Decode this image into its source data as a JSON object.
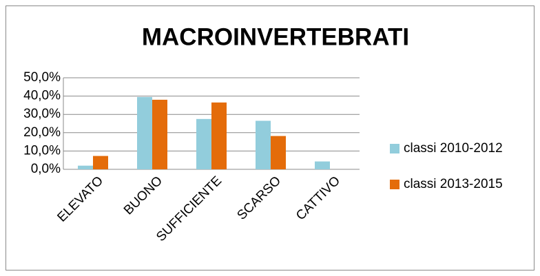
{
  "chart_data": {
    "type": "bar",
    "title": "MACROINVERTEBRATI",
    "categories": [
      "ELEVATO",
      "BUONO",
      "SUFFICIENTE",
      "SCARSO",
      "CATTIVO"
    ],
    "series": [
      {
        "name": "classi 2010-2012",
        "color": "#92cddc",
        "values": [
          2.0,
          39.5,
          27.5,
          26.5,
          4.3
        ]
      },
      {
        "name": "classi 2013-2015",
        "color": "#e46c0a",
        "values": [
          7.3,
          38.0,
          36.5,
          18.2,
          0
        ]
      }
    ],
    "ylim": [
      0,
      50
    ],
    "yticks": [
      {
        "value": 0,
        "label": "0,0%"
      },
      {
        "value": 10,
        "label": "10,0%"
      },
      {
        "value": 20,
        "label": "20,0%"
      },
      {
        "value": 30,
        "label": "30,0%"
      },
      {
        "value": 40,
        "label": "40,0%"
      },
      {
        "value": 50,
        "label": "50,0%"
      }
    ],
    "grid": true,
    "legend": "right"
  }
}
